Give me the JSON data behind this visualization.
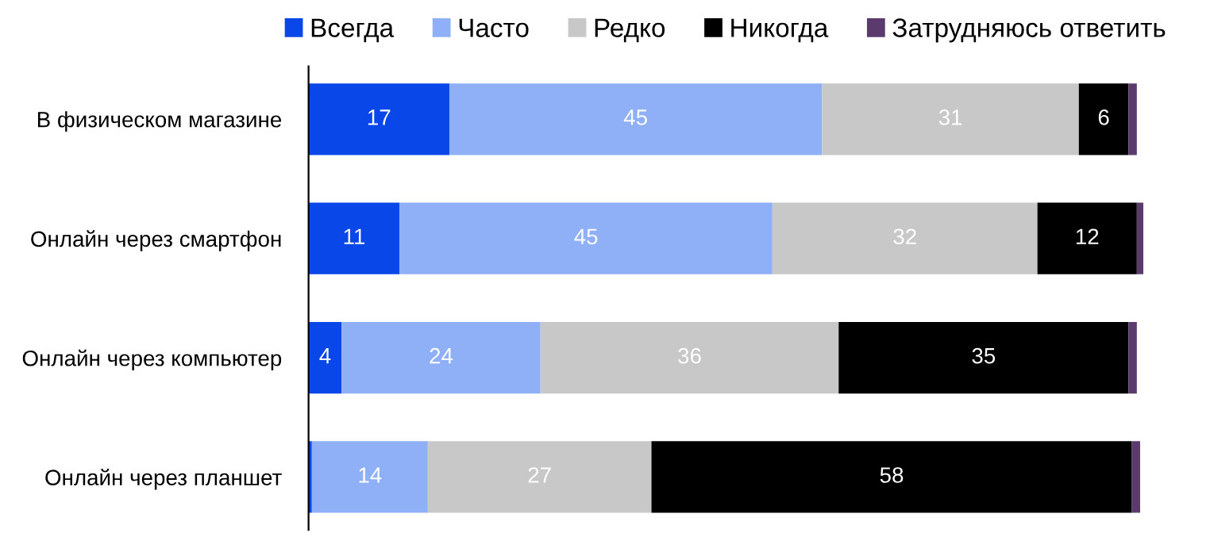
{
  "chart_data": {
    "type": "bar",
    "orientation": "horizontal",
    "stacked": true,
    "legend": "top",
    "categories": [
      "В физическом магазине",
      "Онлайн через смартфон",
      "Онлайн через компьютер",
      "Онлайн через планшет"
    ],
    "series": [
      {
        "name": "Всегда",
        "color": "#0a47e8",
        "values": [
          17,
          11,
          4,
          0.4
        ],
        "value_labels": [
          "17",
          "11",
          "4",
          null
        ]
      },
      {
        "name": "Часто",
        "color": "#8fb0f7",
        "values": [
          45,
          45,
          24,
          14
        ],
        "value_labels": [
          "45",
          "45",
          "24",
          "14"
        ]
      },
      {
        "name": "Редко",
        "color": "#c8c8c8",
        "values": [
          31,
          32,
          36,
          27
        ],
        "value_labels": [
          "31",
          "32",
          "36",
          "27"
        ]
      },
      {
        "name": "Никогда",
        "color": "#000000",
        "values": [
          6,
          12,
          35,
          58
        ],
        "value_labels": [
          "6",
          "12",
          "35",
          "58"
        ]
      },
      {
        "name": "Затрудняюсь ответить",
        "color": "#5b3a6e",
        "values": [
          1,
          0.8,
          1,
          1
        ],
        "value_labels": [
          null,
          null,
          null,
          null
        ]
      }
    ]
  }
}
